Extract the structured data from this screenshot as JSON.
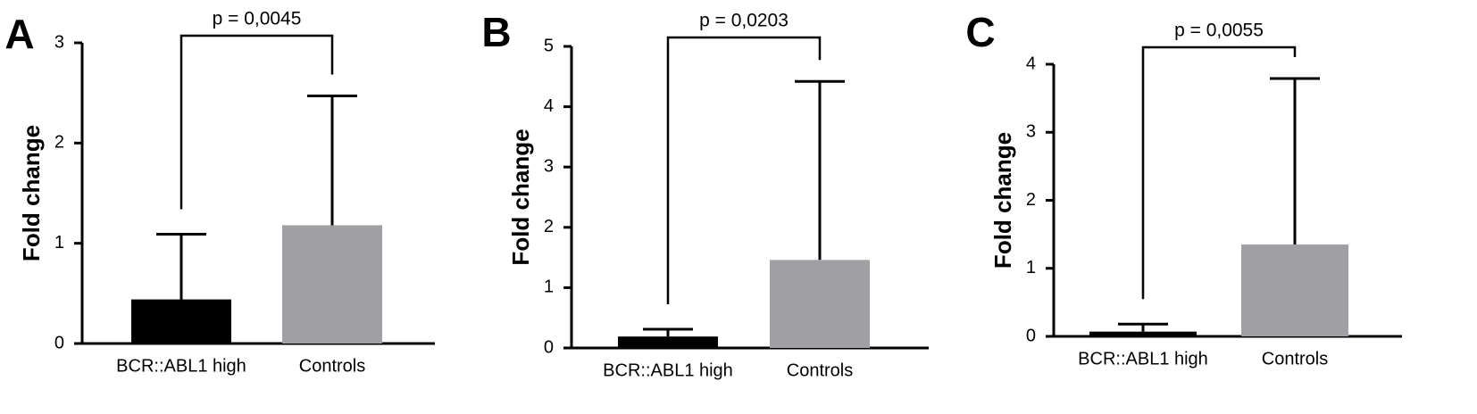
{
  "chart_data": [
    {
      "type": "bar",
      "panel": "A",
      "ylabel": "Fold change",
      "annotation": "p = 0,0045",
      "categories": [
        "BCR::ABL1 high",
        "Controls"
      ],
      "values": [
        0.44,
        1.18
      ],
      "errors": [
        0.65,
        1.29
      ],
      "colors": [
        "#000000",
        "#a0a0a4"
      ],
      "ylim": [
        0,
        3
      ],
      "yticks": [
        0,
        1,
        2,
        3
      ]
    },
    {
      "type": "bar",
      "panel": "B",
      "ylabel": "Fold change",
      "annotation": "p = 0,0203",
      "categories": [
        "BCR::ABL1 high",
        "Controls"
      ],
      "values": [
        0.19,
        1.46
      ],
      "errors": [
        0.12,
        2.96
      ],
      "colors": [
        "#000000",
        "#a0a0a4"
      ],
      "ylim": [
        0,
        5
      ],
      "yticks": [
        0,
        1,
        2,
        3,
        4,
        5
      ]
    },
    {
      "type": "bar",
      "panel": "C",
      "ylabel": "Fold change",
      "annotation": "p = 0,0055",
      "categories": [
        "BCR::ABL1 high",
        "Controls"
      ],
      "values": [
        0.07,
        1.35
      ],
      "errors": [
        0.11,
        2.44
      ],
      "colors": [
        "#000000",
        "#a0a0a4"
      ],
      "ylim": [
        0,
        4
      ],
      "yticks": [
        0,
        1,
        2,
        3,
        4
      ]
    }
  ]
}
